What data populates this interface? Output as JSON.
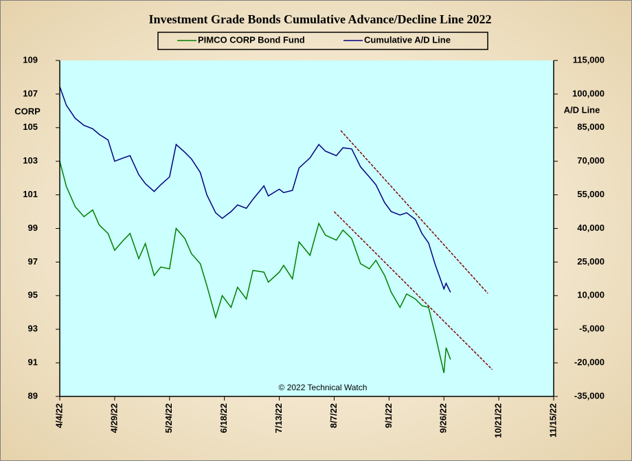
{
  "chart_data": {
    "type": "line",
    "title": "Investment Grade Bonds Cumulative Advance/Decline Line 2022",
    "y_label": "CORP",
    "y2_label": "A/D Line",
    "annotation": "© 2022 Technical Watch",
    "x": [
      "4/4/22",
      "4/7/22",
      "4/11/22",
      "4/15/22",
      "4/19/22",
      "4/22/22",
      "4/26/22",
      "4/29/22",
      "5/3/22",
      "5/6/22",
      "5/10/22",
      "5/13/22",
      "5/17/22",
      "5/20/22",
      "5/24/22",
      "5/27/22",
      "5/31/22",
      "6/3/22",
      "6/7/22",
      "6/10/22",
      "6/14/22",
      "6/17/22",
      "6/21/22",
      "6/24/22",
      "6/28/22",
      "7/1/22",
      "7/6/22",
      "7/8/22",
      "7/13/22",
      "7/15/22",
      "7/19/22",
      "7/22/22",
      "7/27/22",
      "7/31/22",
      "8/3/22",
      "8/8/22",
      "8/11/22",
      "8/15/22",
      "8/19/22",
      "8/23/22",
      "8/26/22",
      "8/30/22",
      "9/2/22",
      "9/6/22",
      "9/9/22",
      "9/13/22",
      "9/16/22",
      "9/19/22",
      "9/22/22",
      "9/26/22",
      "9/27/22",
      "9/29/22"
    ],
    "series": [
      {
        "name": "PIMCO CORP Bond Fund",
        "color": "#008000",
        "axis": "y",
        "values": [
          103.0,
          101.5,
          100.3,
          99.7,
          100.1,
          99.2,
          98.7,
          97.7,
          98.3,
          98.7,
          97.2,
          98.1,
          96.2,
          96.7,
          96.6,
          99.0,
          98.4,
          97.5,
          96.9,
          95.6,
          93.7,
          95.0,
          94.3,
          95.5,
          94.8,
          96.5,
          96.4,
          95.8,
          96.4,
          96.8,
          96.0,
          98.2,
          97.4,
          99.3,
          98.6,
          98.3,
          98.9,
          98.4,
          96.9,
          96.6,
          97.1,
          96.2,
          95.2,
          94.3,
          95.1,
          94.8,
          94.4,
          94.3,
          92.7,
          90.4,
          91.9,
          91.2
        ]
      },
      {
        "name": "Cumulative A/D Line",
        "color": "#000080",
        "axis": "y2",
        "values": [
          103300,
          95000,
          89200,
          86000,
          84500,
          82000,
          79500,
          70000,
          71500,
          72500,
          64000,
          60000,
          56500,
          59500,
          63000,
          77500,
          74000,
          71000,
          65000,
          55000,
          47000,
          44500,
          47500,
          50500,
          49000,
          53000,
          59000,
          54500,
          57500,
          56000,
          57000,
          67000,
          71500,
          77500,
          74500,
          72500,
          76000,
          75500,
          67500,
          63000,
          59500,
          51500,
          47500,
          46000,
          47000,
          44000,
          37700,
          33500,
          24000,
          13000,
          15500,
          11500
        ]
      }
    ],
    "trendlines": [
      {
        "axis": "y2",
        "color": "#800000",
        "x": [
          "8/10/22",
          "10/16/22"
        ],
        "values": [
          83700,
          11000
        ]
      },
      {
        "axis": "y",
        "color": "#800000",
        "x": [
          "8/7/22",
          "10/18/22"
        ],
        "values": [
          100.0,
          90.6
        ]
      }
    ],
    "xlim": [
      "4/4/22",
      "11/15/22"
    ],
    "xticks": [
      "4/4/22",
      "4/29/22",
      "5/24/22",
      "6/18/22",
      "7/13/22",
      "8/7/22",
      "9/1/22",
      "9/26/22",
      "10/21/22",
      "11/15/22"
    ],
    "ylim": [
      89,
      109
    ],
    "yticks": [
      89,
      91,
      93,
      95,
      97,
      99,
      101,
      103,
      105,
      107,
      109
    ],
    "y2lim": [
      -35000,
      115000
    ],
    "y2ticks": [
      {
        "value": -35000,
        "label": "-35,000"
      },
      {
        "value": -20000,
        "label": "-20,000"
      },
      {
        "value": -5000,
        "label": "-5,000"
      },
      {
        "value": 10000,
        "label": "10,000"
      },
      {
        "value": 25000,
        "label": "25,000"
      },
      {
        "value": 40000,
        "label": "40,000"
      },
      {
        "value": 55000,
        "label": "55,000"
      },
      {
        "value": 70000,
        "label": "70,000"
      },
      {
        "value": 85000,
        "label": "85,000"
      },
      {
        "value": 100000,
        "label": "100,000"
      },
      {
        "value": 115000,
        "label": "115,000"
      }
    ],
    "plot_background": "#ccffff"
  }
}
